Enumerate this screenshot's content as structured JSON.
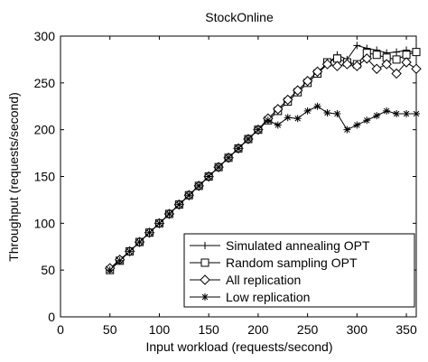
{
  "chart_data": {
    "type": "line",
    "title": "StockOnline",
    "xlabel": "Input workload (requests/second)",
    "ylabel": "Throughput (requests/second)",
    "xlim": [
      0,
      360
    ],
    "ylim": [
      0,
      300
    ],
    "xticks": [
      0,
      50,
      100,
      150,
      200,
      250,
      300,
      350
    ],
    "yticks": [
      0,
      50,
      100,
      150,
      200,
      250,
      300
    ],
    "grid": false,
    "legend_position": "bottom-right",
    "series": [
      {
        "name": "Simulated annealing OPT",
        "marker": "plus",
        "x": [
          50,
          60,
          70,
          80,
          90,
          100,
          110,
          120,
          130,
          140,
          150,
          160,
          170,
          180,
          190,
          200,
          210,
          220,
          230,
          240,
          250,
          260,
          270,
          280,
          290,
          300,
          310,
          320,
          330,
          340,
          350,
          360
        ],
        "y": [
          50,
          60,
          70,
          80,
          90,
          100,
          110,
          120,
          130,
          140,
          150,
          160,
          170,
          180,
          190,
          200,
          210,
          220,
          230,
          240,
          250,
          260,
          270,
          280,
          275,
          290,
          287,
          285,
          282,
          283,
          285,
          282
        ]
      },
      {
        "name": "Random sampling OPT",
        "marker": "square",
        "x": [
          50,
          60,
          70,
          80,
          90,
          100,
          110,
          120,
          130,
          140,
          150,
          160,
          170,
          180,
          190,
          200,
          210,
          220,
          230,
          240,
          250,
          260,
          270,
          280,
          290,
          300,
          310,
          320,
          330,
          340,
          350,
          360
        ],
        "y": [
          50,
          60,
          70,
          80,
          90,
          100,
          110,
          120,
          130,
          140,
          150,
          160,
          170,
          180,
          190,
          200,
          210,
          220,
          230,
          240,
          250,
          260,
          272,
          276,
          272,
          270,
          282,
          280,
          277,
          275,
          280,
          283
        ]
      },
      {
        "name": "All replication",
        "marker": "diamond",
        "x": [
          50,
          60,
          70,
          80,
          90,
          100,
          110,
          120,
          130,
          140,
          150,
          160,
          170,
          180,
          190,
          200,
          210,
          220,
          230,
          240,
          250,
          260,
          270,
          280,
          290,
          300,
          310,
          320,
          330,
          340,
          350,
          360
        ],
        "y": [
          52,
          61,
          70,
          80,
          90,
          100,
          110,
          120,
          130,
          140,
          150,
          160,
          170,
          180,
          190,
          200,
          212,
          222,
          232,
          242,
          252,
          262,
          270,
          268,
          270,
          268,
          276,
          265,
          270,
          260,
          272,
          265
        ]
      },
      {
        "name": "Low replication",
        "marker": "star",
        "x": [
          50,
          60,
          70,
          80,
          90,
          100,
          110,
          120,
          130,
          140,
          150,
          160,
          170,
          180,
          190,
          200,
          210,
          220,
          230,
          240,
          250,
          260,
          270,
          280,
          290,
          300,
          310,
          320,
          330,
          340,
          350,
          360
        ],
        "y": [
          50,
          60,
          70,
          80,
          90,
          100,
          110,
          120,
          130,
          140,
          150,
          160,
          170,
          180,
          190,
          200,
          210,
          205,
          213,
          212,
          220,
          225,
          218,
          217,
          200,
          205,
          210,
          215,
          220,
          217,
          217,
          217
        ]
      }
    ]
  }
}
